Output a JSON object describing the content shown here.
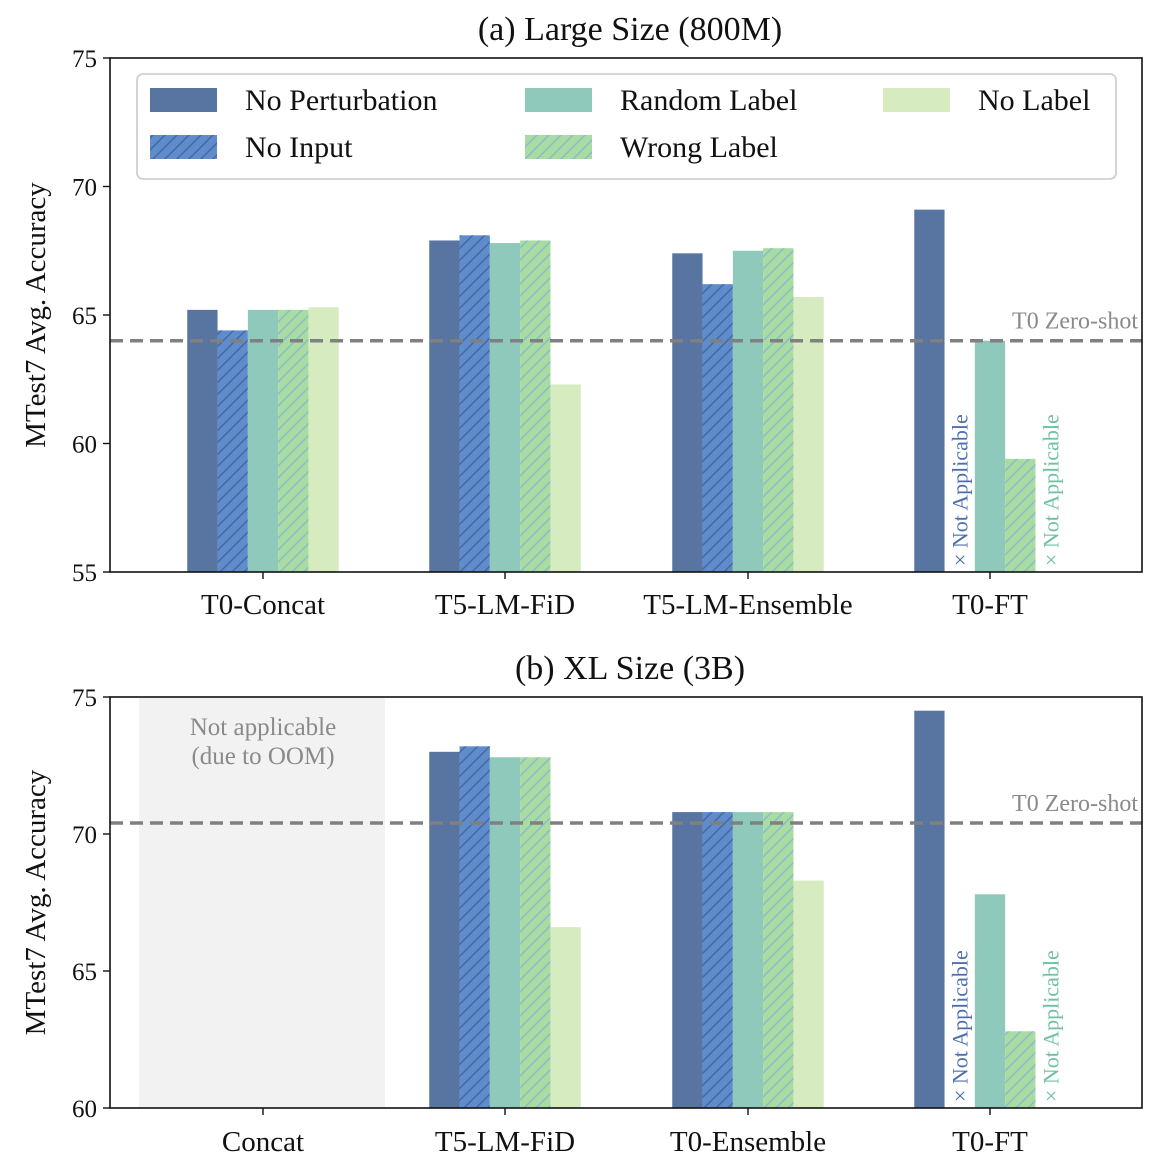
{
  "colors": {
    "no_perturbation": "#5875a2",
    "no_input": "#5f8ccc",
    "random_label": "#8ec9bb",
    "wrong_label": "#a9dca0",
    "no_label": "#d6ecc0",
    "hatch": "#3f5f95",
    "reference_line": "#808080",
    "not_applicable_blue": "#4d6fb0",
    "not_applicable_green": "#6fc1a0",
    "oom_region": "#f2f2f2"
  },
  "legend": {
    "placement": "top",
    "entries": [
      {
        "name": "No Perturbation",
        "key": "no_perturbation",
        "hatch": false
      },
      {
        "name": "No Input",
        "key": "no_input",
        "hatch": true
      },
      {
        "name": "Random Label",
        "key": "random_label",
        "hatch": false
      },
      {
        "name": "Wrong Label",
        "key": "wrong_label",
        "hatch": true
      },
      {
        "name": "No Label",
        "key": "no_label",
        "hatch": false
      }
    ]
  },
  "chart_data": [
    {
      "type": "bar",
      "title": "(a) Large Size (800M)",
      "ylabel": "MTest7 Avg. Accuracy",
      "ylim": [
        55,
        75
      ],
      "yticks": [
        55,
        60,
        65,
        70,
        75
      ],
      "categories": [
        "T0-Concat",
        "T5-LM-FiD",
        "T5-LM-Ensemble",
        "T0-FT"
      ],
      "reference_line": {
        "value": 64.0,
        "label": "T0 Zero-shot"
      },
      "series": [
        {
          "name": "No Perturbation",
          "key": "no_perturbation",
          "values": [
            65.2,
            67.9,
            67.4,
            69.1
          ]
        },
        {
          "name": "No Input",
          "key": "no_input",
          "values": [
            64.4,
            68.1,
            66.2,
            null
          ]
        },
        {
          "name": "Random Label",
          "key": "random_label",
          "values": [
            65.2,
            67.8,
            67.5,
            64.0
          ]
        },
        {
          "name": "Wrong Label",
          "key": "wrong_label",
          "values": [
            65.2,
            67.9,
            67.6,
            59.4
          ]
        },
        {
          "name": "No Label",
          "key": "no_label",
          "values": [
            65.3,
            62.3,
            65.7,
            null
          ]
        }
      ],
      "not_applicable_text": "× Not Applicable",
      "oom": null
    },
    {
      "type": "bar",
      "title": "(b) XL Size (3B)",
      "ylabel": "MTest7 Avg. Accuracy",
      "ylim": [
        60,
        75
      ],
      "yticks": [
        60,
        65,
        70,
        75
      ],
      "categories": [
        "Concat",
        "T5-LM-FiD",
        "T0-Ensemble",
        "T0-FT"
      ],
      "reference_line": {
        "value": 70.4,
        "label": "T0 Zero-shot"
      },
      "series": [
        {
          "name": "No Perturbation",
          "key": "no_perturbation",
          "values": [
            null,
            73.0,
            70.8,
            74.5
          ]
        },
        {
          "name": "No Input",
          "key": "no_input",
          "values": [
            null,
            73.2,
            70.8,
            null
          ]
        },
        {
          "name": "Random Label",
          "key": "random_label",
          "values": [
            null,
            72.8,
            70.8,
            67.8
          ]
        },
        {
          "name": "Wrong Label",
          "key": "wrong_label",
          "values": [
            null,
            72.8,
            70.8,
            62.8
          ]
        },
        {
          "name": "No Label",
          "key": "no_label",
          "values": [
            null,
            66.6,
            68.3,
            null
          ]
        }
      ],
      "not_applicable_text": "× Not Applicable",
      "oom": {
        "category_index": 0,
        "lines": [
          "Not applicable",
          "(due to OOM)"
        ]
      }
    }
  ]
}
